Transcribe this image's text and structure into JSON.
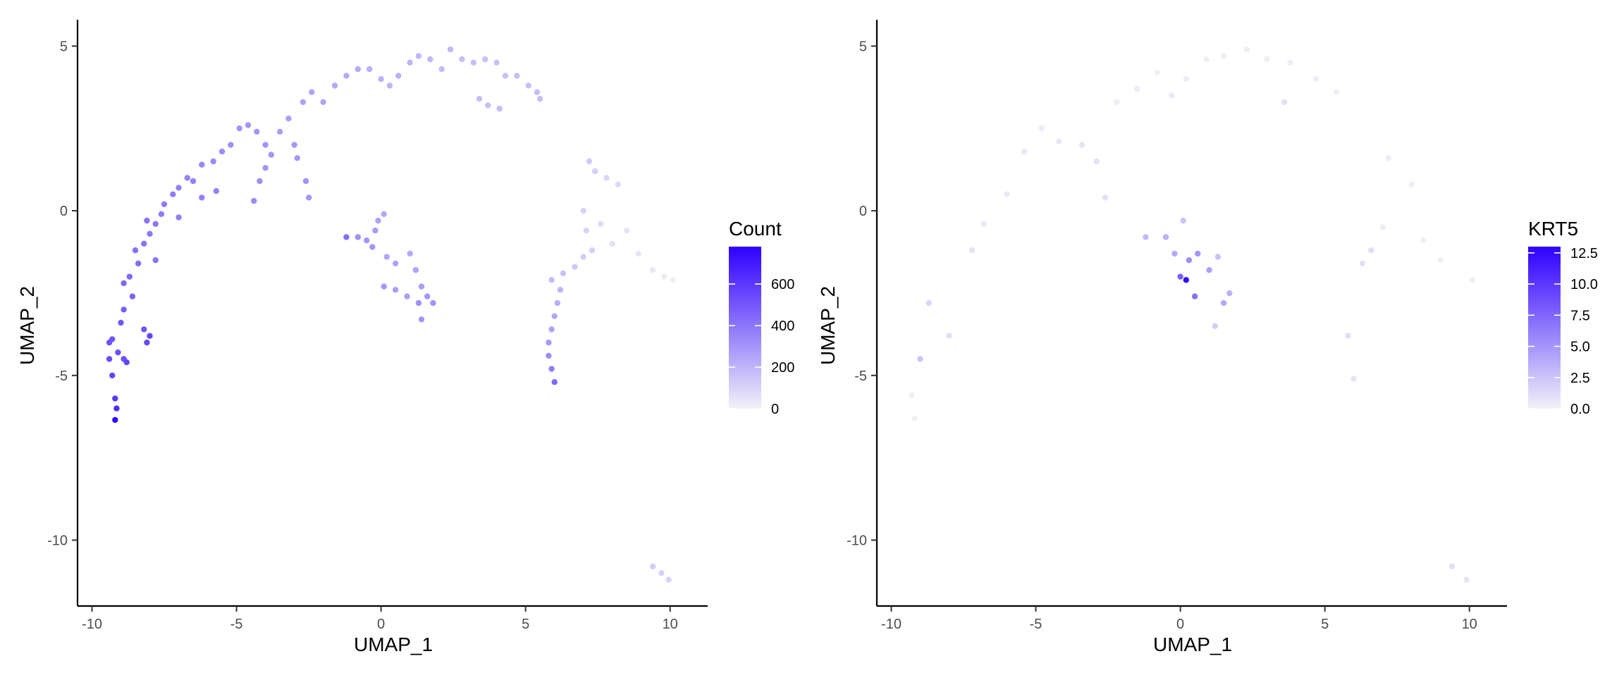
{
  "chart_data": [
    {
      "type": "scatter",
      "panel": "left",
      "xlabel": "UMAP_1",
      "ylabel": "UMAP_2",
      "xlim": [
        -10.5,
        11.3
      ],
      "ylim": [
        -12.0,
        5.8
      ],
      "xticks": [
        -10,
        -5,
        0,
        5,
        10
      ],
      "yticks": [
        -10,
        -5,
        0,
        5
      ],
      "grid": false,
      "legend": {
        "title": "Count",
        "placement": "right",
        "ticks": [
          0,
          200,
          400,
          600
        ],
        "range": [
          0,
          780
        ],
        "low_color": "#f2f2f7",
        "high_color": "#2d00ff"
      },
      "points": [
        {
          "x": -9.2,
          "y": -6.35,
          "v": 770
        },
        {
          "x": -9.15,
          "y": -6.0,
          "v": 640
        },
        {
          "x": -9.2,
          "y": -5.7,
          "v": 600
        },
        {
          "x": -9.3,
          "y": -5.0,
          "v": 560
        },
        {
          "x": -9.4,
          "y": -4.5,
          "v": 540
        },
        {
          "x": -9.1,
          "y": -4.3,
          "v": 520
        },
        {
          "x": -8.9,
          "y": -4.5,
          "v": 530
        },
        {
          "x": -8.8,
          "y": -4.6,
          "v": 560
        },
        {
          "x": -9.4,
          "y": -4.0,
          "v": 520
        },
        {
          "x": -9.3,
          "y": -3.9,
          "v": 510
        },
        {
          "x": -9.0,
          "y": -3.4,
          "v": 500
        },
        {
          "x": -8.9,
          "y": -3.0,
          "v": 480
        },
        {
          "x": -8.0,
          "y": -3.8,
          "v": 560
        },
        {
          "x": -8.1,
          "y": -4.0,
          "v": 540
        },
        {
          "x": -8.2,
          "y": -3.6,
          "v": 510
        },
        {
          "x": -8.6,
          "y": -2.6,
          "v": 460
        },
        {
          "x": -8.9,
          "y": -2.2,
          "v": 450
        },
        {
          "x": -8.7,
          "y": -2.0,
          "v": 440
        },
        {
          "x": -8.4,
          "y": -1.6,
          "v": 430
        },
        {
          "x": -8.5,
          "y": -1.2,
          "v": 420
        },
        {
          "x": -8.2,
          "y": -1.0,
          "v": 410
        },
        {
          "x": -8.0,
          "y": -0.7,
          "v": 400
        },
        {
          "x": -7.8,
          "y": -0.4,
          "v": 400
        },
        {
          "x": -7.6,
          "y": -0.1,
          "v": 390
        },
        {
          "x": -8.1,
          "y": -0.3,
          "v": 410
        },
        {
          "x": -7.5,
          "y": 0.2,
          "v": 390
        },
        {
          "x": -7.2,
          "y": 0.5,
          "v": 380
        },
        {
          "x": -7.0,
          "y": 0.7,
          "v": 370
        },
        {
          "x": -6.7,
          "y": 1.0,
          "v": 360
        },
        {
          "x": -6.5,
          "y": 0.9,
          "v": 370
        },
        {
          "x": -6.2,
          "y": 1.4,
          "v": 350
        },
        {
          "x": -5.8,
          "y": 1.5,
          "v": 340
        },
        {
          "x": -5.5,
          "y": 1.8,
          "v": 330
        },
        {
          "x": -5.2,
          "y": 2.0,
          "v": 320
        },
        {
          "x": -4.9,
          "y": 2.5,
          "v": 310
        },
        {
          "x": -4.6,
          "y": 2.6,
          "v": 300
        },
        {
          "x": -4.3,
          "y": 2.4,
          "v": 300
        },
        {
          "x": -4.0,
          "y": 2.0,
          "v": 310
        },
        {
          "x": -3.8,
          "y": 1.7,
          "v": 300
        },
        {
          "x": -3.5,
          "y": 2.4,
          "v": 280
        },
        {
          "x": -3.2,
          "y": 2.8,
          "v": 270
        },
        {
          "x": -2.7,
          "y": 3.3,
          "v": 260
        },
        {
          "x": -2.4,
          "y": 3.6,
          "v": 255
        },
        {
          "x": -2.0,
          "y": 3.3,
          "v": 250
        },
        {
          "x": -1.6,
          "y": 3.8,
          "v": 240
        },
        {
          "x": -1.2,
          "y": 4.1,
          "v": 235
        },
        {
          "x": -0.8,
          "y": 4.3,
          "v": 230
        },
        {
          "x": -0.4,
          "y": 4.3,
          "v": 220
        },
        {
          "x": 0.0,
          "y": 4.0,
          "v": 210
        },
        {
          "x": 0.3,
          "y": 3.8,
          "v": 200
        },
        {
          "x": 0.6,
          "y": 4.1,
          "v": 210
        },
        {
          "x": 1.0,
          "y": 4.5,
          "v": 200
        },
        {
          "x": 1.3,
          "y": 4.7,
          "v": 190
        },
        {
          "x": 1.7,
          "y": 4.6,
          "v": 190
        },
        {
          "x": 2.1,
          "y": 4.3,
          "v": 180
        },
        {
          "x": 2.4,
          "y": 4.9,
          "v": 185
        },
        {
          "x": 2.8,
          "y": 4.6,
          "v": 170
        },
        {
          "x": 3.2,
          "y": 4.5,
          "v": 170
        },
        {
          "x": 3.6,
          "y": 4.6,
          "v": 160
        },
        {
          "x": 4.0,
          "y": 4.5,
          "v": 160
        },
        {
          "x": 4.3,
          "y": 4.1,
          "v": 160
        },
        {
          "x": 4.7,
          "y": 4.1,
          "v": 165
        },
        {
          "x": 5.1,
          "y": 3.8,
          "v": 165
        },
        {
          "x": 5.4,
          "y": 3.6,
          "v": 170
        },
        {
          "x": 5.5,
          "y": 3.4,
          "v": 175
        },
        {
          "x": 3.4,
          "y": 3.4,
          "v": 170
        },
        {
          "x": 3.7,
          "y": 3.2,
          "v": 165
        },
        {
          "x": 4.1,
          "y": 3.1,
          "v": 170
        },
        {
          "x": -2.5,
          "y": 0.4,
          "v": 300
        },
        {
          "x": -2.6,
          "y": 0.9,
          "v": 310
        },
        {
          "x": -2.9,
          "y": 1.6,
          "v": 300
        },
        {
          "x": -3.0,
          "y": 2.0,
          "v": 290
        },
        {
          "x": -4.4,
          "y": 0.3,
          "v": 330
        },
        {
          "x": -4.2,
          "y": 0.9,
          "v": 320
        },
        {
          "x": -4.0,
          "y": 1.3,
          "v": 310
        },
        {
          "x": -5.7,
          "y": 0.6,
          "v": 360
        },
        {
          "x": -6.2,
          "y": 0.4,
          "v": 370
        },
        {
          "x": -7.0,
          "y": -0.2,
          "v": 380
        },
        {
          "x": -7.8,
          "y": -1.5,
          "v": 410
        },
        {
          "x": -1.2,
          "y": -0.8,
          "v": 430
        },
        {
          "x": -0.8,
          "y": -0.8,
          "v": 320
        },
        {
          "x": -0.5,
          "y": -0.9,
          "v": 300
        },
        {
          "x": -0.2,
          "y": -0.6,
          "v": 280
        },
        {
          "x": -0.1,
          "y": -0.3,
          "v": 260
        },
        {
          "x": 0.1,
          "y": -0.1,
          "v": 240
        },
        {
          "x": -0.3,
          "y": -1.1,
          "v": 300
        },
        {
          "x": 0.2,
          "y": -1.4,
          "v": 250
        },
        {
          "x": 0.5,
          "y": -1.6,
          "v": 260
        },
        {
          "x": 1.0,
          "y": -1.3,
          "v": 240
        },
        {
          "x": 1.2,
          "y": -1.8,
          "v": 260
        },
        {
          "x": 1.4,
          "y": -2.3,
          "v": 280
        },
        {
          "x": 1.6,
          "y": -2.6,
          "v": 300
        },
        {
          "x": 1.3,
          "y": -2.8,
          "v": 320
        },
        {
          "x": 1.4,
          "y": -3.3,
          "v": 300
        },
        {
          "x": 1.8,
          "y": -2.8,
          "v": 310
        },
        {
          "x": 0.1,
          "y": -2.3,
          "v": 300
        },
        {
          "x": 0.5,
          "y": -2.4,
          "v": 280
        },
        {
          "x": 0.9,
          "y": -2.6,
          "v": 270
        },
        {
          "x": 6.0,
          "y": -5.2,
          "v": 450
        },
        {
          "x": 5.9,
          "y": -4.8,
          "v": 380
        },
        {
          "x": 5.8,
          "y": -4.4,
          "v": 330
        },
        {
          "x": 5.8,
          "y": -4.0,
          "v": 290
        },
        {
          "x": 5.9,
          "y": -3.6,
          "v": 260
        },
        {
          "x": 6.0,
          "y": -3.2,
          "v": 240
        },
        {
          "x": 6.1,
          "y": -2.8,
          "v": 220
        },
        {
          "x": 6.2,
          "y": -2.4,
          "v": 200
        },
        {
          "x": 5.9,
          "y": -2.1,
          "v": 180
        },
        {
          "x": 6.3,
          "y": -1.9,
          "v": 160
        },
        {
          "x": 6.7,
          "y": -1.7,
          "v": 140
        },
        {
          "x": 7.0,
          "y": -1.4,
          "v": 120
        },
        {
          "x": 7.3,
          "y": -1.2,
          "v": 110
        },
        {
          "x": 7.1,
          "y": -0.6,
          "v": 100
        },
        {
          "x": 7.0,
          "y": 0.0,
          "v": 100
        },
        {
          "x": 7.2,
          "y": 1.5,
          "v": 130
        },
        {
          "x": 7.4,
          "y": 1.2,
          "v": 110
        },
        {
          "x": 7.8,
          "y": 1.0,
          "v": 90
        },
        {
          "x": 8.2,
          "y": 0.8,
          "v": 80
        },
        {
          "x": 7.6,
          "y": -0.4,
          "v": 70
        },
        {
          "x": 8.0,
          "y": -1.0,
          "v": 60
        },
        {
          "x": 8.5,
          "y": -0.6,
          "v": 50
        },
        {
          "x": 8.9,
          "y": -1.3,
          "v": 40
        },
        {
          "x": 9.4,
          "y": -1.8,
          "v": 30
        },
        {
          "x": 9.8,
          "y": -2.0,
          "v": 25
        },
        {
          "x": 10.1,
          "y": -2.1,
          "v": 20
        },
        {
          "x": 9.4,
          "y": -10.8,
          "v": 120
        },
        {
          "x": 9.7,
          "y": -11.0,
          "v": 110
        },
        {
          "x": 9.95,
          "y": -11.2,
          "v": 100
        }
      ]
    },
    {
      "type": "scatter",
      "panel": "right",
      "xlabel": "UMAP_1",
      "ylabel": "UMAP_2",
      "xlim": [
        -10.5,
        11.3
      ],
      "ylim": [
        -12.0,
        5.8
      ],
      "xticks": [
        -10,
        -5,
        0,
        5,
        10
      ],
      "yticks": [
        -10,
        -5,
        0,
        5
      ],
      "grid": false,
      "legend": {
        "title": "KRT5",
        "placement": "right",
        "ticks": [
          "0.0",
          "2.5",
          "5.0",
          "7.5",
          "10.0",
          "12.5"
        ],
        "range": [
          0,
          13
        ],
        "low_color": "#f2f2f7",
        "high_color": "#2d00ff"
      },
      "points": [
        {
          "x": 0.2,
          "y": -2.1,
          "v": 12.5
        },
        {
          "x": 0.0,
          "y": -2.0,
          "v": 8.0
        },
        {
          "x": 0.5,
          "y": -2.6,
          "v": 7.0
        },
        {
          "x": 0.3,
          "y": -1.5,
          "v": 5.5
        },
        {
          "x": 0.6,
          "y": -1.3,
          "v": 5.0
        },
        {
          "x": 1.0,
          "y": -1.8,
          "v": 4.5
        },
        {
          "x": 1.5,
          "y": -2.8,
          "v": 4.0
        },
        {
          "x": 1.7,
          "y": -2.5,
          "v": 3.5
        },
        {
          "x": -0.5,
          "y": -0.8,
          "v": 3.5
        },
        {
          "x": -1.2,
          "y": -0.8,
          "v": 3.0
        },
        {
          "x": 0.1,
          "y": -0.3,
          "v": 2.5
        },
        {
          "x": -0.2,
          "y": -1.3,
          "v": 4.0
        },
        {
          "x": 1.2,
          "y": -3.5,
          "v": 2.0
        },
        {
          "x": 1.3,
          "y": -1.4,
          "v": 2.5
        },
        {
          "x": -9.0,
          "y": -4.5,
          "v": 2.5
        },
        {
          "x": -8.7,
          "y": -2.8,
          "v": 1.5
        },
        {
          "x": -8.0,
          "y": -3.8,
          "v": 1.0
        },
        {
          "x": -7.2,
          "y": -1.2,
          "v": 0.8
        },
        {
          "x": -6.8,
          "y": -0.4,
          "v": 0.6
        },
        {
          "x": -6.0,
          "y": 0.5,
          "v": 0.5
        },
        {
          "x": -5.4,
          "y": 1.8,
          "v": 0.5
        },
        {
          "x": -4.8,
          "y": 2.5,
          "v": 0.4
        },
        {
          "x": -4.2,
          "y": 2.1,
          "v": 0.6
        },
        {
          "x": -3.4,
          "y": 2.0,
          "v": 0.8
        },
        {
          "x": -2.9,
          "y": 1.5,
          "v": 1.0
        },
        {
          "x": -2.6,
          "y": 0.4,
          "v": 1.0
        },
        {
          "x": -2.2,
          "y": 3.3,
          "v": 0.3
        },
        {
          "x": -1.5,
          "y": 3.7,
          "v": 0.3
        },
        {
          "x": -0.8,
          "y": 4.2,
          "v": 0.2
        },
        {
          "x": -0.3,
          "y": 3.5,
          "v": 0.5
        },
        {
          "x": 0.2,
          "y": 4.0,
          "v": 0.2
        },
        {
          "x": 0.9,
          "y": 4.6,
          "v": 0.2
        },
        {
          "x": 1.5,
          "y": 4.7,
          "v": 0.2
        },
        {
          "x": 2.3,
          "y": 4.9,
          "v": 0.2
        },
        {
          "x": 3.0,
          "y": 4.6,
          "v": 0.2
        },
        {
          "x": 3.8,
          "y": 4.5,
          "v": 0.3
        },
        {
          "x": 3.6,
          "y": 3.3,
          "v": 1.0
        },
        {
          "x": 4.7,
          "y": 4.0,
          "v": 0.2
        },
        {
          "x": 5.4,
          "y": 3.6,
          "v": 0.2
        },
        {
          "x": 5.8,
          "y": -3.8,
          "v": 1.0
        },
        {
          "x": 6.0,
          "y": -5.1,
          "v": 0.8
        },
        {
          "x": 6.3,
          "y": -1.6,
          "v": 1.0
        },
        {
          "x": 6.6,
          "y": -1.2,
          "v": 1.2
        },
        {
          "x": 7.0,
          "y": -0.5,
          "v": 0.3
        },
        {
          "x": 7.2,
          "y": 1.6,
          "v": 0.3
        },
        {
          "x": 8.0,
          "y": 0.8,
          "v": 0.2
        },
        {
          "x": 8.4,
          "y": -0.9,
          "v": 0.2
        },
        {
          "x": 9.0,
          "y": -1.5,
          "v": 0.2
        },
        {
          "x": 10.1,
          "y": -2.1,
          "v": 0.1
        },
        {
          "x": -9.3,
          "y": -5.6,
          "v": 0.2
        },
        {
          "x": -9.2,
          "y": -6.3,
          "v": 0.1
        },
        {
          "x": 9.4,
          "y": -10.8,
          "v": 1.0
        },
        {
          "x": 9.9,
          "y": -11.2,
          "v": 0.8
        }
      ]
    }
  ]
}
